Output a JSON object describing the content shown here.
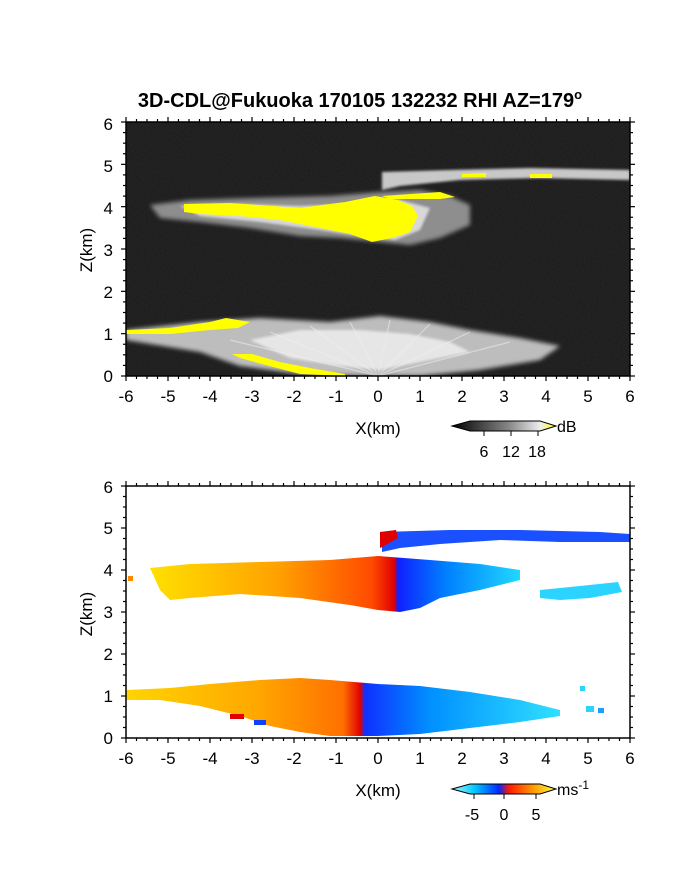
{
  "title": "3D-CDL@Fukuoka 170105 132232 RHI AZ=179",
  "title_superscript": "o",
  "chart_data": [
    {
      "type": "heatmap",
      "name": "backscatter",
      "xlabel": "X(km)",
      "ylabel": "Z(km)",
      "xlim": [
        -6,
        6
      ],
      "ylim": [
        0,
        6
      ],
      "xticks": [
        "-6",
        "-5",
        "-4",
        "-3",
        "-2",
        "-1",
        "0",
        "1",
        "2",
        "3",
        "4",
        "5",
        "6"
      ],
      "yticks": [
        "0",
        "1",
        "2",
        "3",
        "4",
        "5",
        "6"
      ],
      "colorbar": {
        "unit": "dB",
        "ticks": [
          "6",
          "12",
          "18"
        ],
        "range": [
          0,
          20
        ],
        "colormap": "grayscale-to-yellow"
      },
      "background": "grayscale noise",
      "features": [
        {
          "label": "cloud layer",
          "x": [
            -5.4,
            2.8
          ],
          "z": [
            3.1,
            4.4
          ],
          "saturated_region_x": [
            -0.9,
            0.9
          ]
        },
        {
          "label": "upper layer",
          "x": [
            0.1,
            6.0
          ],
          "z": [
            4.6,
            5.0
          ]
        },
        {
          "label": "boundary layer",
          "x": [
            -6.0,
            4.5
          ],
          "z": [
            0.0,
            1.4
          ]
        }
      ],
      "colors": {
        "saturation": "#ffff00"
      }
    },
    {
      "type": "heatmap",
      "name": "doppler_velocity",
      "xlabel": "X(km)",
      "ylabel": "Z(km)",
      "xlim": [
        -6,
        6
      ],
      "ylim": [
        0,
        6
      ],
      "xticks": [
        "-6",
        "-5",
        "-4",
        "-3",
        "-2",
        "-1",
        "0",
        "1",
        "2",
        "3",
        "4",
        "5",
        "6"
      ],
      "yticks": [
        "0",
        "1",
        "2",
        "3",
        "4",
        "5",
        "6"
      ],
      "colorbar": {
        "unit": "ms",
        "unit_exponent": "-1",
        "ticks": [
          "-5",
          "0",
          "5"
        ],
        "range": [
          -7,
          7
        ],
        "colormap": "cyan-blue-red-yellow"
      },
      "features": [
        {
          "label": "cloud layer",
          "x": [
            -5.4,
            3.3
          ],
          "z": [
            3.1,
            4.4
          ],
          "velocity_left": 4,
          "velocity_right": -4
        },
        {
          "label": "upper layer",
          "x": [
            0.1,
            6.0
          ],
          "z": [
            4.6,
            5.0
          ],
          "velocity": -3.5
        },
        {
          "label": "far cloud",
          "x": [
            4.0,
            5.7
          ],
          "z": [
            3.2,
            3.7
          ],
          "velocity": -6
        },
        {
          "label": "boundary layer",
          "x": [
            -6.0,
            4.3
          ],
          "z": [
            0.0,
            1.4
          ],
          "velocity_left": 4,
          "velocity_right": -5
        }
      ]
    }
  ]
}
